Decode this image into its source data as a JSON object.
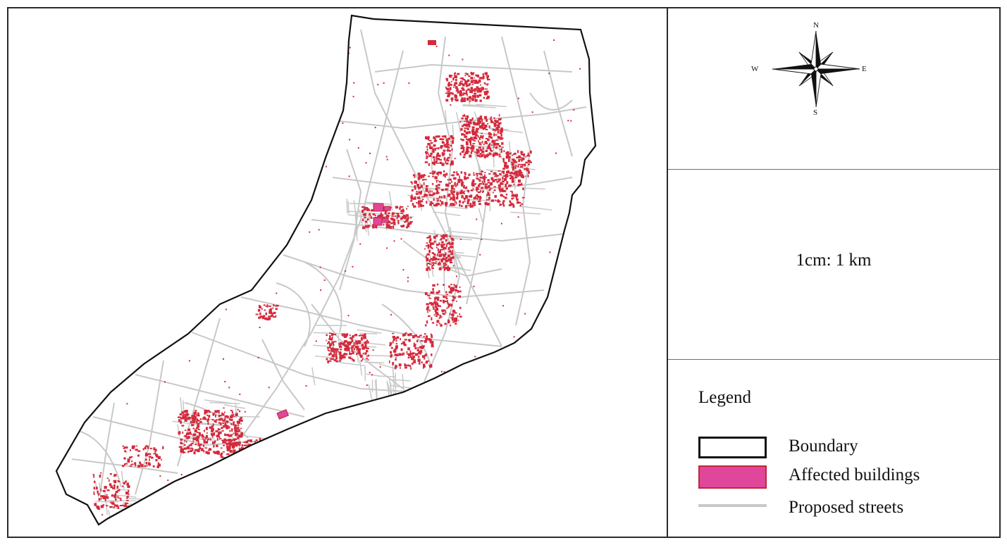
{
  "compass": {
    "n": "N",
    "s": "S",
    "e": "E",
    "w": "W",
    "icon": "compass-rose-icon"
  },
  "scale": {
    "text": "1cm: 1 km"
  },
  "legend": {
    "title": "Legend",
    "items": [
      {
        "label": "Boundary",
        "symbol": "outline-box",
        "color": "#111111"
      },
      {
        "label": "Affected buildings",
        "symbol": "filled-box",
        "color": "#e0479a"
      },
      {
        "label": "Proposed streets",
        "symbol": "line",
        "color": "#c8c8c8"
      }
    ]
  },
  "colors": {
    "boundary": "#111111",
    "streets": "#c8c8c8",
    "affected": "#d42a3c",
    "affected_fill": "#e0479a"
  }
}
